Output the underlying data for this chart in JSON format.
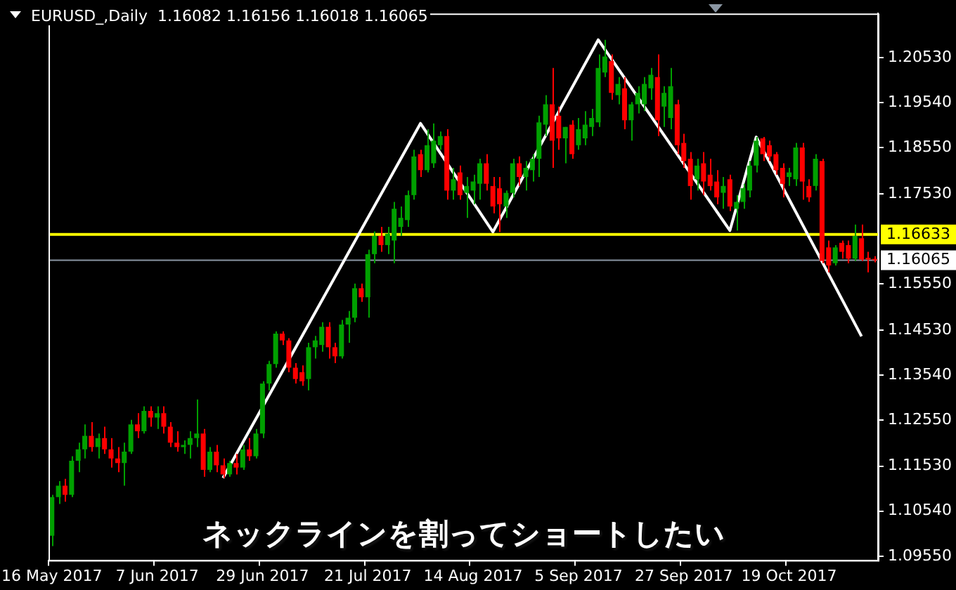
{
  "chart_data": {
    "type": "candlestick",
    "title": "EURUSD_,Daily  1.16082 1.16156 1.16018 1.16065",
    "annotations": [
      "ネックラインを割ってショートしたい"
    ],
    "categories": [
      "16 May 2017",
      null,
      null,
      null,
      null,
      null,
      null,
      null,
      null,
      null,
      null,
      null,
      null,
      null,
      null,
      null,
      "7 Jun 2017",
      null,
      null,
      null,
      null,
      null,
      null,
      null,
      null,
      null,
      null,
      null,
      null,
      null,
      null,
      null,
      "29 Jun 2017",
      null,
      null,
      null,
      null,
      null,
      null,
      null,
      null,
      null,
      null,
      null,
      null,
      null,
      null,
      null,
      "21 Jul 2017",
      null,
      null,
      null,
      null,
      null,
      null,
      null,
      null,
      null,
      null,
      null,
      null,
      null,
      null,
      null,
      "14 Aug 2017",
      null,
      null,
      null,
      null,
      null,
      null,
      null,
      null,
      null,
      null,
      null,
      null,
      null,
      null,
      null,
      "5 Sep 2017",
      null,
      null,
      null,
      null,
      null,
      null,
      null,
      null,
      null,
      null,
      null,
      null,
      null,
      null,
      null,
      "27 Sep 2017",
      null,
      null,
      null,
      null,
      null,
      null,
      null,
      null,
      null,
      null,
      null,
      null,
      null,
      null,
      null,
      "19 Oct 2017",
      null,
      null,
      null,
      null,
      null,
      null,
      null,
      null,
      null,
      null,
      null,
      null,
      null
    ],
    "ohlc": [
      [
        1.1,
        1.109,
        1.0977,
        1.1085
      ],
      [
        1.1085,
        1.112,
        1.107,
        1.111
      ],
      [
        1.111,
        1.1125,
        1.1075,
        1.109
      ],
      [
        1.109,
        1.1175,
        1.1085,
        1.1165
      ],
      [
        1.1165,
        1.1205,
        1.114,
        1.119
      ],
      [
        1.119,
        1.1245,
        1.117,
        1.122
      ],
      [
        1.122,
        1.125,
        1.1185,
        1.1195
      ],
      [
        1.1195,
        1.1225,
        1.117,
        1.1215
      ],
      [
        1.1215,
        1.124,
        1.118,
        1.119
      ],
      [
        1.119,
        1.1215,
        1.115,
        1.117
      ],
      [
        1.117,
        1.1195,
        1.114,
        1.116
      ],
      [
        1.116,
        1.1205,
        1.111,
        1.1185
      ],
      [
        1.1185,
        1.1255,
        1.118,
        1.1245
      ],
      [
        1.1245,
        1.127,
        1.1215,
        1.123
      ],
      [
        1.123,
        1.1285,
        1.1225,
        1.1275
      ],
      [
        1.1275,
        1.1285,
        1.124,
        1.126
      ],
      [
        1.126,
        1.1285,
        1.1235,
        1.127
      ],
      [
        1.127,
        1.1285,
        1.1225,
        1.124
      ],
      [
        1.124,
        1.125,
        1.1195,
        1.1205
      ],
      [
        1.1205,
        1.123,
        1.1185,
        1.1195
      ],
      [
        1.1195,
        1.121,
        1.118,
        1.12
      ],
      [
        1.12,
        1.123,
        1.117,
        1.1215
      ],
      [
        1.1215,
        1.13,
        1.1195,
        1.1225
      ],
      [
        1.1225,
        1.1235,
        1.113,
        1.1145
      ],
      [
        1.1145,
        1.1195,
        1.114,
        1.1185
      ],
      [
        1.1185,
        1.12,
        1.114,
        1.1155
      ],
      [
        1.1155,
        1.117,
        1.1127,
        1.1135
      ],
      [
        1.1135,
        1.1165,
        1.113,
        1.116
      ],
      [
        1.116,
        1.118,
        1.1135,
        1.115
      ],
      [
        1.115,
        1.12,
        1.1145,
        1.119
      ],
      [
        1.119,
        1.1215,
        1.1165,
        1.1175
      ],
      [
        1.1175,
        1.1235,
        1.117,
        1.1225
      ],
      [
        1.1225,
        1.134,
        1.1215,
        1.1335
      ],
      [
        1.1335,
        1.1385,
        1.132,
        1.1378
      ],
      [
        1.1378,
        1.145,
        1.137,
        1.1445
      ],
      [
        1.1445,
        1.145,
        1.142,
        1.143
      ],
      [
        1.143,
        1.1435,
        1.136,
        1.137
      ],
      [
        1.137,
        1.138,
        1.1335,
        1.1345
      ],
      [
        1.136,
        1.1375,
        1.133,
        1.134
      ],
      [
        1.1345,
        1.1425,
        1.132,
        1.1415
      ],
      [
        1.1415,
        1.144,
        1.139,
        1.143
      ],
      [
        1.142,
        1.147,
        1.1405,
        1.146
      ],
      [
        1.146,
        1.147,
        1.139,
        1.1415
      ],
      [
        1.1415,
        1.1425,
        1.138,
        1.1395
      ],
      [
        1.1395,
        1.1475,
        1.139,
        1.1465
      ],
      [
        1.1465,
        1.1495,
        1.1425,
        1.148
      ],
      [
        1.148,
        1.1555,
        1.147,
        1.1545
      ],
      [
        1.1545,
        1.1555,
        1.1515,
        1.1525
      ],
      [
        1.1525,
        1.163,
        1.148,
        1.162
      ],
      [
        1.162,
        1.167,
        1.16,
        1.166
      ],
      [
        1.166,
        1.168,
        1.1625,
        1.164
      ],
      [
        1.164,
        1.168,
        1.162,
        1.1665
      ],
      [
        1.165,
        1.1735,
        1.16,
        1.172
      ],
      [
        1.168,
        1.1725,
        1.166,
        1.17
      ],
      [
        1.1695,
        1.176,
        1.168,
        1.175
      ],
      [
        1.175,
        1.185,
        1.174,
        1.1835
      ],
      [
        1.184,
        1.185,
        1.179,
        1.1805
      ],
      [
        1.1805,
        1.1895,
        1.18,
        1.186
      ],
      [
        1.182,
        1.1908,
        1.181,
        1.187
      ],
      [
        1.186,
        1.189,
        1.185,
        1.188
      ],
      [
        1.188,
        1.1895,
        1.174,
        1.176
      ],
      [
        1.176,
        1.181,
        1.174,
        1.1785
      ],
      [
        1.18,
        1.1815,
        1.174,
        1.175
      ],
      [
        1.1755,
        1.179,
        1.17,
        1.177
      ],
      [
        1.176,
        1.1795,
        1.173,
        1.178
      ],
      [
        1.1775,
        1.183,
        1.174,
        1.182
      ],
      [
        1.182,
        1.184,
        1.176,
        1.1775
      ],
      [
        1.177,
        1.179,
        1.171,
        1.1725
      ],
      [
        1.1765,
        1.179,
        1.1669,
        1.173
      ],
      [
        1.1725,
        1.176,
        1.17,
        1.1755
      ],
      [
        1.1755,
        1.183,
        1.1745,
        1.182
      ],
      [
        1.182,
        1.1835,
        1.177,
        1.179
      ],
      [
        1.179,
        1.1825,
        1.176,
        1.181
      ],
      [
        1.1805,
        1.184,
        1.178,
        1.183
      ],
      [
        1.183,
        1.1925,
        1.179,
        1.191
      ],
      [
        1.1905,
        1.197,
        1.188,
        1.195
      ],
      [
        1.195,
        1.203,
        1.181,
        1.187
      ],
      [
        1.1925,
        1.1945,
        1.185,
        1.1875
      ],
      [
        1.1875,
        1.19,
        1.182,
        1.19
      ],
      [
        1.1905,
        1.1915,
        1.183,
        1.184
      ],
      [
        1.186,
        1.192,
        1.185,
        1.1895
      ],
      [
        1.1875,
        1.1935,
        1.186,
        1.1905
      ],
      [
        1.19,
        1.194,
        1.188,
        1.192
      ],
      [
        1.191,
        1.206,
        1.19,
        1.203
      ],
      [
        1.202,
        1.2092,
        1.201,
        1.2055
      ],
      [
        1.2045,
        1.206,
        1.196,
        1.1975
      ],
      [
        1.197,
        1.201,
        1.195,
        1.1995
      ],
      [
        1.1985,
        1.201,
        1.1895,
        1.1915
      ],
      [
        1.1915,
        1.1955,
        1.187,
        1.195
      ],
      [
        1.195,
        1.199,
        1.193,
        1.1975
      ],
      [
        1.195,
        1.201,
        1.1935,
        1.1995
      ],
      [
        1.1985,
        1.203,
        1.196,
        1.2015
      ],
      [
        1.201,
        1.206,
        1.188,
        1.1915
      ],
      [
        1.1945,
        1.199,
        1.19,
        1.1975
      ],
      [
        1.192,
        1.203,
        1.1895,
        1.199
      ],
      [
        1.195,
        1.196,
        1.184,
        1.186
      ],
      [
        1.1865,
        1.1885,
        1.181,
        1.1825
      ],
      [
        1.183,
        1.1845,
        1.174,
        1.177
      ],
      [
        1.1785,
        1.183,
        1.176,
        1.1815
      ],
      [
        1.182,
        1.1845,
        1.175,
        1.178
      ],
      [
        1.1795,
        1.183,
        1.176,
        1.177
      ],
      [
        1.178,
        1.1805,
        1.173,
        1.1745
      ],
      [
        1.1755,
        1.179,
        1.172,
        1.177
      ],
      [
        1.1785,
        1.1795,
        1.1715,
        1.1725
      ],
      [
        1.172,
        1.175,
        1.1672,
        1.1735
      ],
      [
        1.1735,
        1.1775,
        1.172,
        1.1765
      ],
      [
        1.176,
        1.1825,
        1.1745,
        1.1815
      ],
      [
        1.1815,
        1.1878,
        1.18,
        1.187
      ],
      [
        1.1875,
        1.1878,
        1.1825,
        1.184
      ],
      [
        1.186,
        1.187,
        1.1825,
        1.1835
      ],
      [
        1.184,
        1.1845,
        1.1795,
        1.1805
      ],
      [
        1.181,
        1.182,
        1.1745,
        1.1775
      ],
      [
        1.179,
        1.181,
        1.177,
        1.18
      ],
      [
        1.1785,
        1.1865,
        1.177,
        1.1855
      ],
      [
        1.1855,
        1.1865,
        1.174,
        1.178
      ],
      [
        1.177,
        1.1785,
        1.1735,
        1.1745
      ],
      [
        1.177,
        1.184,
        1.176,
        1.183
      ],
      [
        1.1825,
        1.183,
        1.16,
        1.1605
      ],
      [
        1.1635,
        1.165,
        1.158,
        1.1595
      ],
      [
        1.16,
        1.164,
        1.1595,
        1.1635
      ],
      [
        1.1645,
        1.165,
        1.161,
        1.1625
      ],
      [
        1.164,
        1.165,
        1.16,
        1.161
      ],
      [
        1.161,
        1.1685,
        1.1605,
        1.166
      ],
      [
        1.1655,
        1.1685,
        1.1605,
        1.1608
      ],
      [
        1.1612,
        1.1625,
        1.158,
        1.1608
      ],
      [
        1.16082,
        1.16156,
        1.16018,
        1.16065
      ]
    ],
    "colors": [
      "#00a000",
      "#00a000",
      "#ff0000",
      "#00a000",
      "#00a000",
      "#00a000",
      "#ff0000",
      "#00a000",
      "#ff0000",
      "#ff0000",
      "#ff0000",
      "#00a000",
      "#00a000",
      "#ff0000",
      "#00a000",
      "#ff0000",
      "#00a000",
      "#ff0000",
      "#ff0000",
      "#ff0000",
      "#00a000",
      "#00a000",
      "#00a000",
      "#ff0000",
      "#00a000",
      "#ff0000",
      "#ff0000",
      "#00a000",
      "#ff0000",
      "#00a000",
      "#ff0000",
      "#00a000",
      "#00a000",
      "#00a000",
      "#00a000",
      "#ff0000",
      "#ff0000",
      "#ff0000",
      "#ff0000",
      "#00a000",
      "#00a000",
      "#00a000",
      "#ff0000",
      "#ff0000",
      "#00a000",
      "#00a000",
      "#00a000",
      "#ff0000",
      "#00a000",
      "#00a000",
      "#ff0000",
      "#00a000",
      "#00a000",
      "#00a000",
      "#00a000",
      "#00a000",
      "#ff0000",
      "#00a000",
      "#00a000",
      "#00a000",
      "#ff0000",
      "#00a000",
      "#ff0000",
      "#00a000",
      "#00a000",
      "#00a000",
      "#ff0000",
      "#ff0000",
      "#ff0000",
      "#00a000",
      "#00a000",
      "#ff0000",
      "#00a000",
      "#00a000",
      "#00a000",
      "#00a000",
      "#ff0000",
      "#ff0000",
      "#00a000",
      "#ff0000",
      "#00a000",
      "#00a000",
      "#00a000",
      "#00a000",
      "#00a000",
      "#ff0000",
      "#00a000",
      "#ff0000",
      "#00a000",
      "#00a000",
      "#00a000",
      "#00a000",
      "#ff0000",
      "#00a000",
      "#00a000",
      "#ff0000",
      "#ff0000",
      "#ff0000",
      "#00a000",
      "#ff0000",
      "#ff0000",
      "#ff0000",
      "#00a000",
      "#ff0000",
      "#00a000",
      "#00a000",
      "#00a000",
      "#00a000",
      "#ff0000",
      "#ff0000",
      "#ff0000",
      "#ff0000",
      "#00a000",
      "#00a000",
      "#ff0000",
      "#ff0000",
      "#00a000",
      "#ff0000",
      "#ff0000",
      "#00a000",
      "#ff0000",
      "#ff0000",
      "#00a000",
      "#ff0000",
      "#ff0000",
      "#ff0000"
    ],
    "series": [
      {
        "type": "line",
        "color": "#ffffff",
        "values": [
          null,
          null,
          null,
          null,
          null,
          null,
          null,
          null,
          null,
          null,
          null,
          null,
          null,
          null,
          null,
          null,
          null,
          null,
          null,
          null,
          null,
          null,
          null,
          null,
          null,
          null,
          1.1127,
          null,
          null,
          null,
          null,
          null,
          null,
          null,
          null,
          null,
          null,
          null,
          null,
          null,
          null,
          null,
          null,
          null,
          null,
          null,
          null,
          null,
          null,
          null,
          null,
          null,
          null,
          null,
          null,
          null,
          1.1908,
          null,
          null,
          null,
          null,
          null,
          null,
          null,
          null,
          null,
          null,
          1.1669,
          null,
          null,
          null,
          null,
          null,
          null,
          null,
          null,
          null,
          null,
          null,
          null,
          null,
          null,
          null,
          1.2092,
          null,
          null,
          null,
          null,
          null,
          null,
          null,
          null,
          null,
          null,
          null,
          null,
          null,
          null,
          null,
          null,
          null,
          null,
          null,
          1.1672,
          null,
          null,
          null,
          1.1878,
          null,
          null,
          null,
          null,
          null,
          null,
          null,
          null,
          null,
          null,
          null,
          null,
          null,
          null,
          null,
          1.1439,
          null,
          null
        ]
      }
    ],
    "ylim": [
      1.0946,
      1.215
    ],
    "yticks": [
      {
        "value": 1.0955,
        "label": "1.09550"
      },
      {
        "value": 1.1054,
        "label": "1.10540"
      },
      {
        "value": 1.1153,
        "label": "1.11530"
      },
      {
        "value": 1.1255,
        "label": "1.12550"
      },
      {
        "value": 1.1354,
        "label": "1.13540"
      },
      {
        "value": 1.1453,
        "label": "1.14530"
      },
      {
        "value": 1.1555,
        "label": "1.15550"
      },
      {
        "value": 1.1753,
        "label": "1.17530"
      },
      {
        "value": 1.1855,
        "label": "1.18550"
      },
      {
        "value": 1.1954,
        "label": "1.19540"
      },
      {
        "value": 1.2053,
        "label": "1.20530"
      }
    ],
    "ref_lines": [
      {
        "axis": "y",
        "value": 1.16633,
        "label": "1.16633",
        "color": "#ffff00"
      },
      {
        "axis": "y",
        "value": 1.16065,
        "label": "1.16065",
        "color": "#8a96a3"
      }
    ],
    "grid": false,
    "legend": false
  }
}
